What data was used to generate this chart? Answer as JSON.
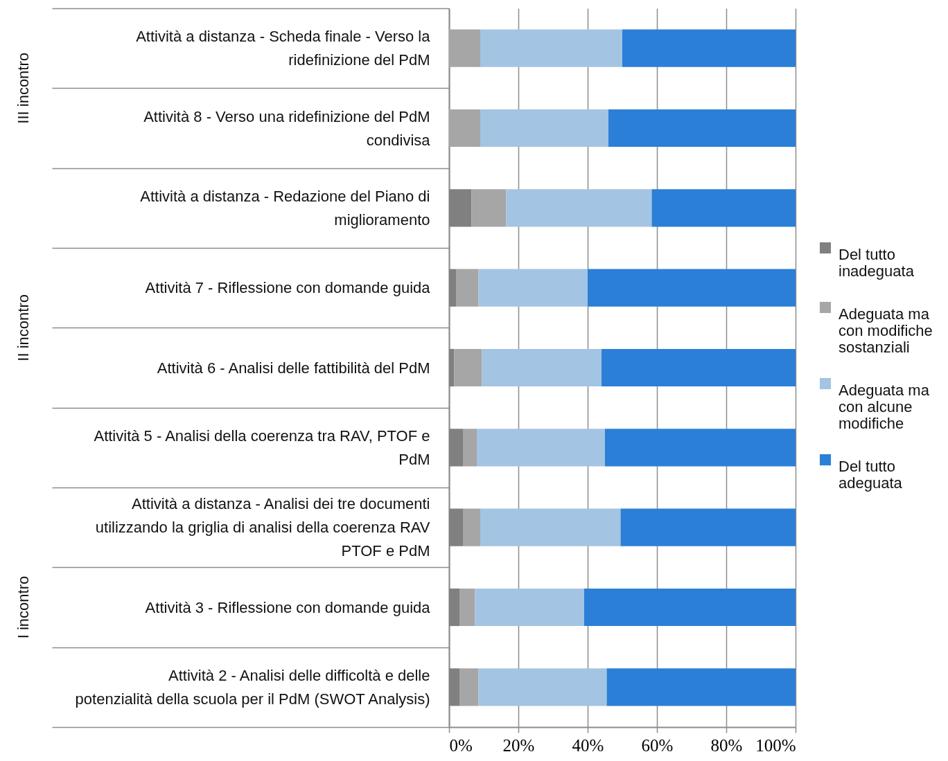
{
  "chart_data": {
    "type": "bar",
    "orientation": "horizontal",
    "stacked": true,
    "categories": [
      "Attività a distanza - Scheda finale - Verso la ridefinizione del PdM",
      "Attività 8 - Verso una ridefinizione del PdM condivisa",
      "Attività a distanza - Redazione del Piano di miglioramento",
      "Attività 7 - Riflessione con domande guida",
      "Attività 6 - Analisi delle fattibilità del PdM",
      "Attività 5 - Analisi della coerenza tra RAV, PTOF e PdM",
      "Attività a distanza - Analisi dei tre documenti utilizzando la griglia di analisi della coerenza RAV PTOF e PdM",
      "Attività 3 - Riflessione con domande guida",
      "Attività 2 - Analisi delle difficoltà e delle potenzialità della scuola per il PdM (SWOT Analysis)"
    ],
    "series": [
      {
        "name": "Del tutto inadeguata",
        "color": "#808080",
        "values": [
          0,
          0,
          6.5,
          2,
          1.5,
          4,
          4,
          3,
          3
        ]
      },
      {
        "name": "Adeguata ma con modifiche sostanziali",
        "color": "#a6a6a6",
        "values": [
          9,
          9,
          10,
          6.5,
          8,
          4,
          5,
          4.5,
          5.5
        ]
      },
      {
        "name": "Adeguata ma con alcune modifiche",
        "color": "#a3c4e2",
        "values": [
          41,
          37,
          42,
          31.5,
          34.5,
          37,
          40.5,
          31.5,
          37
        ]
      },
      {
        "name": "Del tutto adeguata",
        "color": "#2b7fd6",
        "values": [
          50,
          54,
          41.5,
          60,
          56,
          55,
          50.5,
          61,
          54.5
        ]
      }
    ],
    "xlim": [
      0,
      100
    ],
    "xticks": [
      {
        "value": 0,
        "label": "0%"
      },
      {
        "value": 20,
        "label": "20%"
      },
      {
        "value": 40,
        "label": "40%"
      },
      {
        "value": 60,
        "label": "60%"
      },
      {
        "value": 80,
        "label": "80%"
      },
      {
        "value": 100,
        "label": "100%"
      }
    ],
    "grid": "x",
    "legend": "right",
    "annotations": [
      "III incontro",
      "II incontro",
      "I incontro"
    ]
  }
}
